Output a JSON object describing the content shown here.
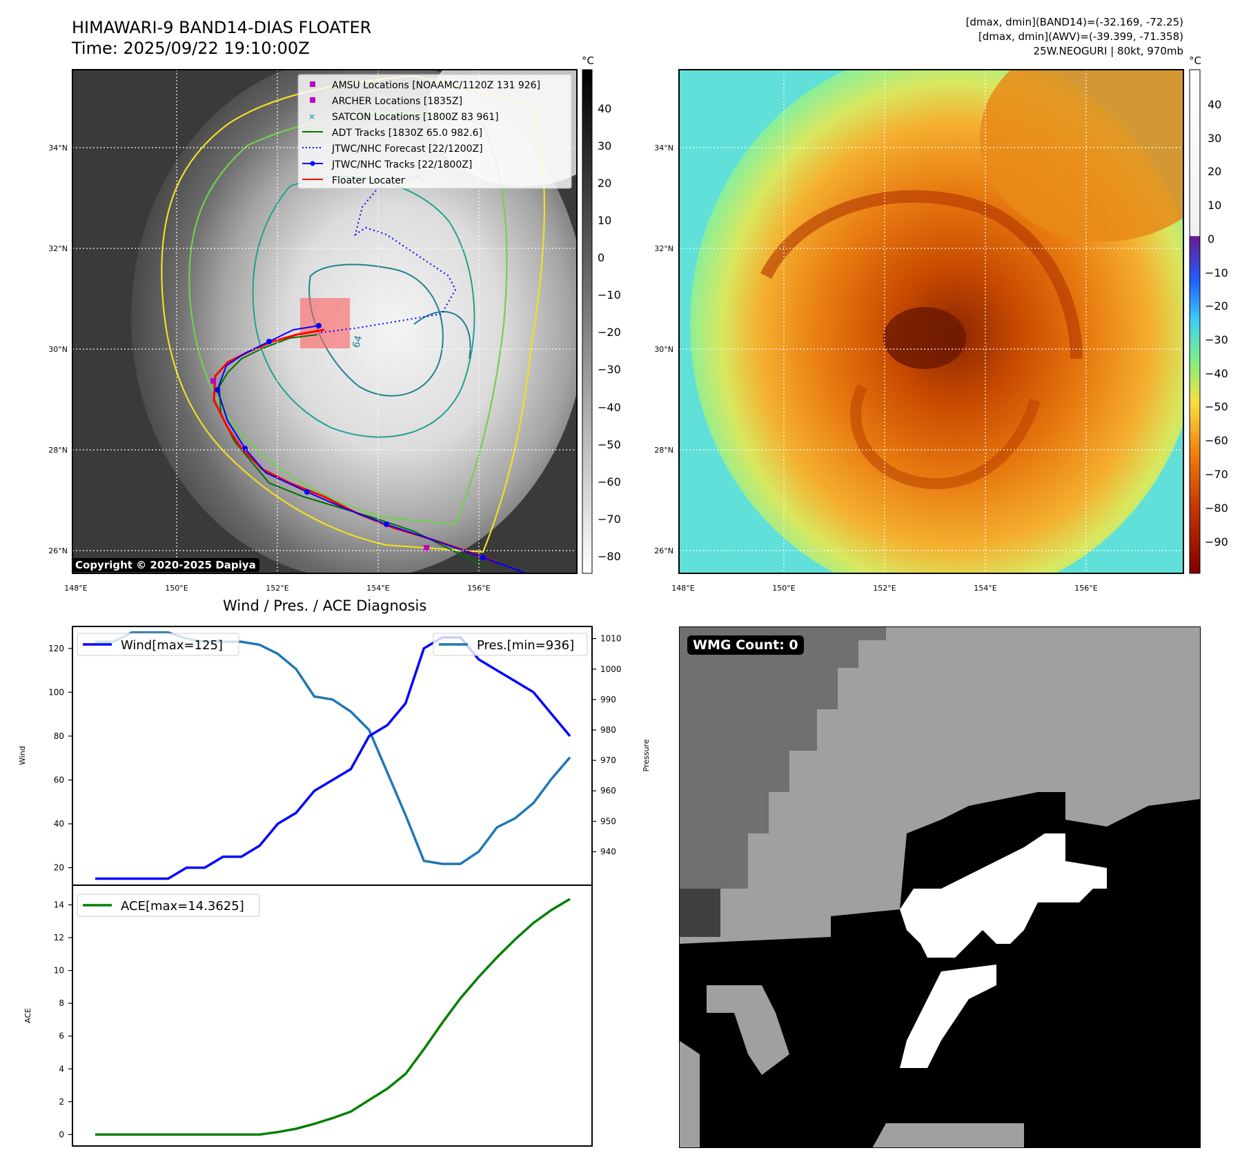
{
  "header": {
    "title_line1": "HIMAWARI-9 BAND14-DIAS FLOATER",
    "title_line2": "Time: 2025/09/22 19:10:00Z",
    "info_line1": "[dmax, dmin](BAND14)=(-32.169, -72.25)",
    "info_line2": "[dmax, dmin](AWV)=(-39.399, -71.358)",
    "info_line3": "25W.NEOGURI | 80kt, 970mb"
  },
  "map_left": {
    "copyright": "Copyright © 2020-2025 Dapiya",
    "lat_labels": [
      "34°N",
      "32°N",
      "30°N",
      "28°N",
      "26°N"
    ],
    "lon_labels": [
      "148°E",
      "150°E",
      "152°E",
      "154°E",
      "156°E"
    ],
    "colorbar_unit": "°C",
    "colorbar_ticks": [
      "40",
      "30",
      "20",
      "10",
      "0",
      "−10",
      "−20",
      "−30",
      "−40",
      "−50",
      "−60",
      "−70",
      "−80"
    ],
    "contour_label": "64",
    "legend": [
      {
        "label": "AMSU Locations [NOAAMC/1120Z 131 926]",
        "marker": "square",
        "color": "#c000c0"
      },
      {
        "label": "ARCHER Locations [1835Z]",
        "marker": "square",
        "color": "#c000c0"
      },
      {
        "label": "SATCON Locations [1800Z 83 961]",
        "marker": "x",
        "color": "#20b0b0"
      },
      {
        "label": "ADT Tracks [1830Z 65.0 982.6]",
        "marker": "line",
        "color": "#007000"
      },
      {
        "label": "JTWC/NHC Forecast [22/1200Z]",
        "marker": "dotted",
        "color": "#0000ff"
      },
      {
        "label": "JTWC/NHC Tracks [22/1800Z]",
        "marker": "line-dot",
        "color": "#0000ff"
      },
      {
        "label": "Floater Locater",
        "marker": "line",
        "color": "#ff0000"
      }
    ]
  },
  "map_right": {
    "lat_labels": [
      "34°N",
      "32°N",
      "30°N",
      "28°N",
      "26°N"
    ],
    "lon_labels": [
      "148°E",
      "150°E",
      "152°E",
      "154°E",
      "156°E"
    ],
    "colorbar_unit": "°C",
    "colorbar_ticks": [
      "40",
      "30",
      "20",
      "10",
      "0",
      "−10",
      "−20",
      "−30",
      "−40",
      "−50",
      "−60",
      "−70",
      "−80",
      "−90"
    ]
  },
  "diagnosis": {
    "title": "Wind / Pres. / ACE Diagnosis",
    "wind_ylabel": "Wind",
    "pres_ylabel": "Pressure",
    "ace_ylabel": "ACE",
    "wind_legend": "Wind[max=125]",
    "pres_legend": "Pres.[min=936]",
    "ace_legend": "ACE[max=14.3625]",
    "colors": {
      "wind": "#0000ff",
      "pres": "#1f77b4",
      "ace": "#008000"
    }
  },
  "wmg": {
    "label": "WMG Count: 0"
  },
  "chart_data": [
    {
      "type": "line",
      "title": "Wind / Pres. / ACE Diagnosis",
      "ylabel": "Wind",
      "ylim": [
        12,
        130
      ],
      "yticks": [
        20,
        40,
        60,
        80,
        100,
        120
      ],
      "series": [
        {
          "name": "Wind[max=125]",
          "values": [
            15,
            15,
            15,
            15,
            15,
            20,
            20,
            25,
            25,
            30,
            40,
            45,
            55,
            60,
            65,
            80,
            85,
            95,
            120,
            125,
            125,
            115,
            110,
            105,
            100,
            90,
            80
          ]
        }
      ]
    },
    {
      "type": "line",
      "ylabel": "Pressure",
      "ylim": [
        929,
        1014
      ],
      "yticks": [
        940,
        950,
        960,
        970,
        980,
        990,
        1000,
        1010
      ],
      "series": [
        {
          "name": "Pres.[min=936]",
          "values": [
            1009,
            1009,
            1012,
            1012,
            1012,
            1010,
            1009,
            1009,
            1009,
            1008,
            1005,
            1000,
            991,
            990,
            986,
            980,
            966,
            952,
            937,
            936,
            936,
            940,
            948,
            951,
            956,
            964,
            971
          ]
        }
      ]
    },
    {
      "type": "line",
      "ylabel": "ACE",
      "ylim": [
        -0.7,
        15.2
      ],
      "yticks": [
        0,
        2,
        4,
        6,
        8,
        10,
        12,
        14
      ],
      "series": [
        {
          "name": "ACE[max=14.3625]",
          "values": [
            0,
            0,
            0,
            0,
            0,
            0,
            0,
            0,
            0,
            0,
            0.15,
            0.35,
            0.65,
            1.0,
            1.4,
            2.1,
            2.8,
            3.7,
            5.2,
            6.8,
            8.3,
            9.6,
            10.8,
            11.9,
            12.9,
            13.7,
            14.36
          ]
        }
      ]
    }
  ]
}
